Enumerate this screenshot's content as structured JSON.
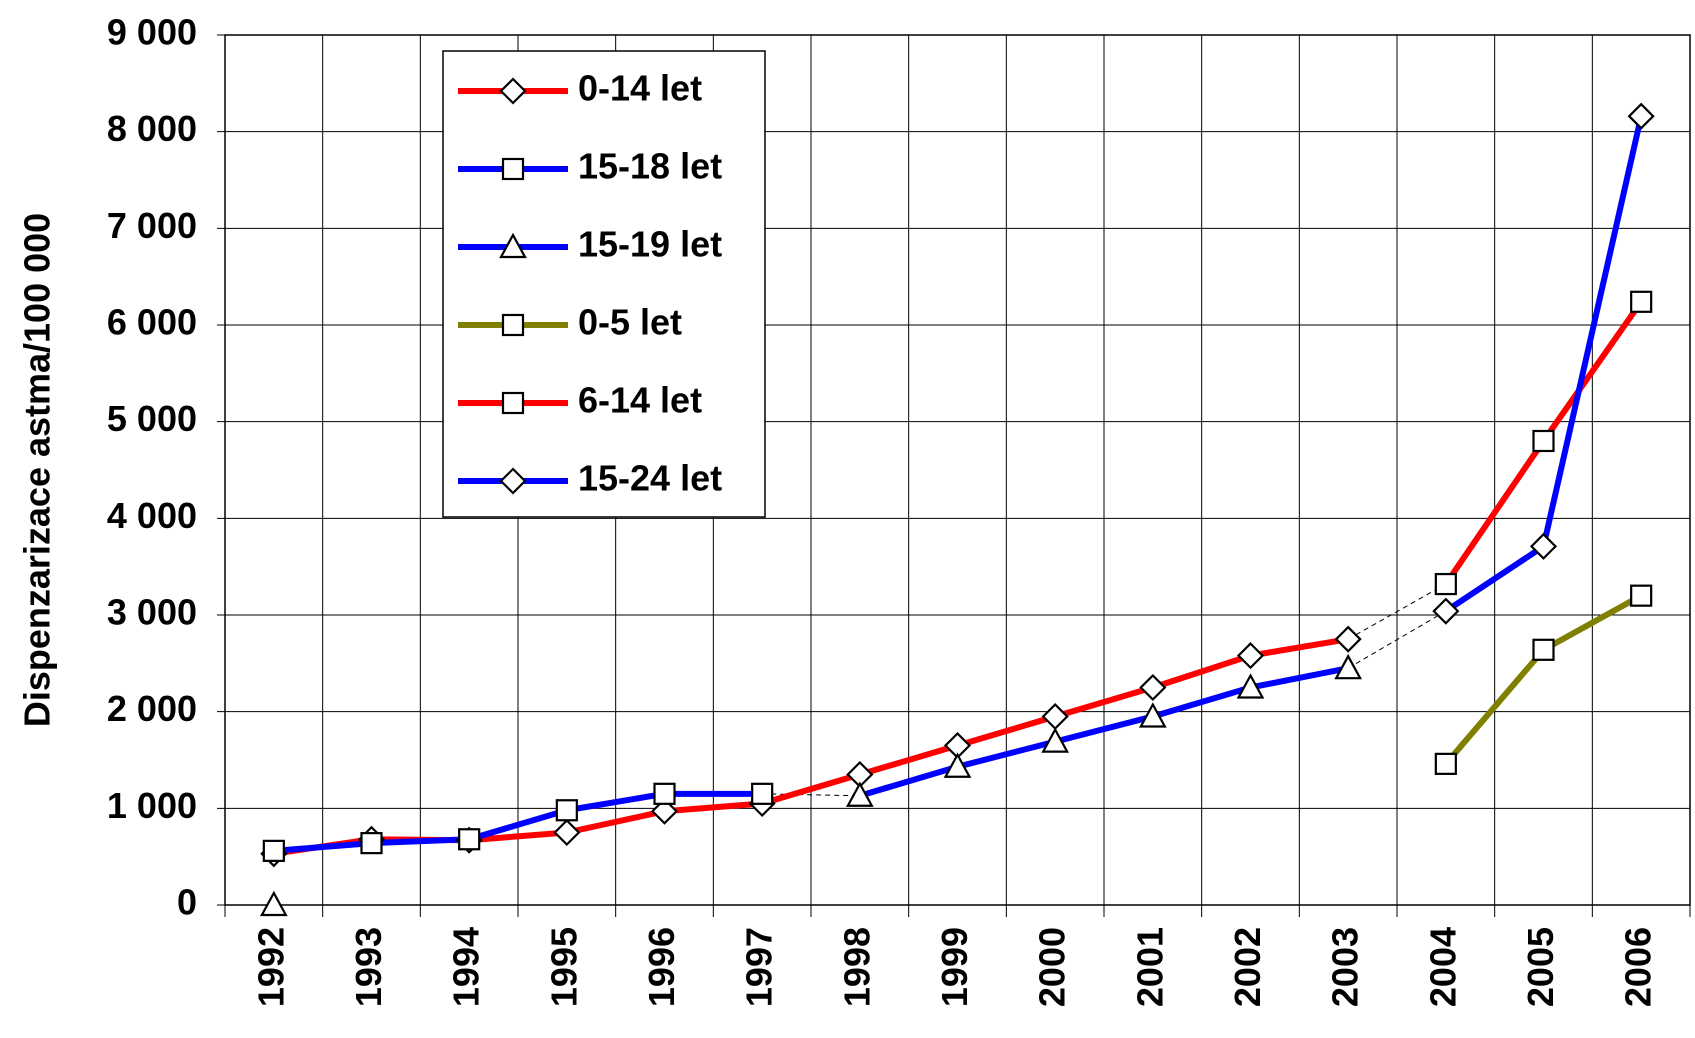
{
  "chart_data": {
    "type": "line",
    "y_label": "Dispenzarizace astma/100 000",
    "categories": [
      "1992",
      "1993",
      "1994",
      "1995",
      "1996",
      "1997",
      "1998",
      "1999",
      "2000",
      "2001",
      "2002",
      "2003",
      "2004",
      "2005",
      "2006"
    ],
    "series": [
      {
        "name": "0-14 let",
        "color": "#ff0000",
        "marker": "diamond",
        "values": [
          530,
          680,
          670,
          750,
          970,
          1050,
          1350,
          1650,
          1950,
          2250,
          2580,
          2750,
          null,
          null,
          null
        ]
      },
      {
        "name": "15-18 let",
        "color": "#0000ff",
        "marker": "square",
        "values": [
          560,
          640,
          680,
          980,
          1150,
          1150,
          null,
          null,
          null,
          null,
          null,
          null,
          null,
          null,
          null
        ]
      },
      {
        "name": "15-19 let",
        "color": "#0000ff",
        "marker": "triangle",
        "values": [
          0,
          null,
          null,
          null,
          null,
          null,
          1130,
          1430,
          1690,
          1950,
          2250,
          2450,
          null,
          null,
          null
        ]
      },
      {
        "name": "0-5 let",
        "color": "#808000",
        "marker": "square",
        "values": [
          null,
          null,
          null,
          null,
          null,
          null,
          null,
          null,
          null,
          null,
          null,
          null,
          1460,
          2640,
          3200
        ]
      },
      {
        "name": "6-14 let",
        "color": "#ff0000",
        "marker": "square",
        "values": [
          null,
          null,
          null,
          null,
          null,
          null,
          null,
          null,
          null,
          null,
          null,
          null,
          3320,
          4800,
          6240
        ]
      },
      {
        "name": "15-24 let",
        "color": "#0000ff",
        "marker": "diamond",
        "values": [
          null,
          null,
          null,
          null,
          null,
          null,
          null,
          null,
          null,
          null,
          null,
          null,
          3040,
          3710,
          8160
        ]
      }
    ],
    "ylim": [
      0,
      9000
    ],
    "yticks": [
      {
        "value": 0,
        "label": "0"
      },
      {
        "value": 1000,
        "label": "1 000"
      },
      {
        "value": 2000,
        "label": "2 000"
      },
      {
        "value": 3000,
        "label": "3 000"
      },
      {
        "value": 4000,
        "label": "4 000"
      },
      {
        "value": 5000,
        "label": "5 000"
      },
      {
        "value": 6000,
        "label": "6 000"
      },
      {
        "value": 7000,
        "label": "7 000"
      },
      {
        "value": 8000,
        "label": "8 000"
      },
      {
        "value": 9000,
        "label": "9 000"
      }
    ],
    "grid": true,
    "legend": "upper left"
  }
}
